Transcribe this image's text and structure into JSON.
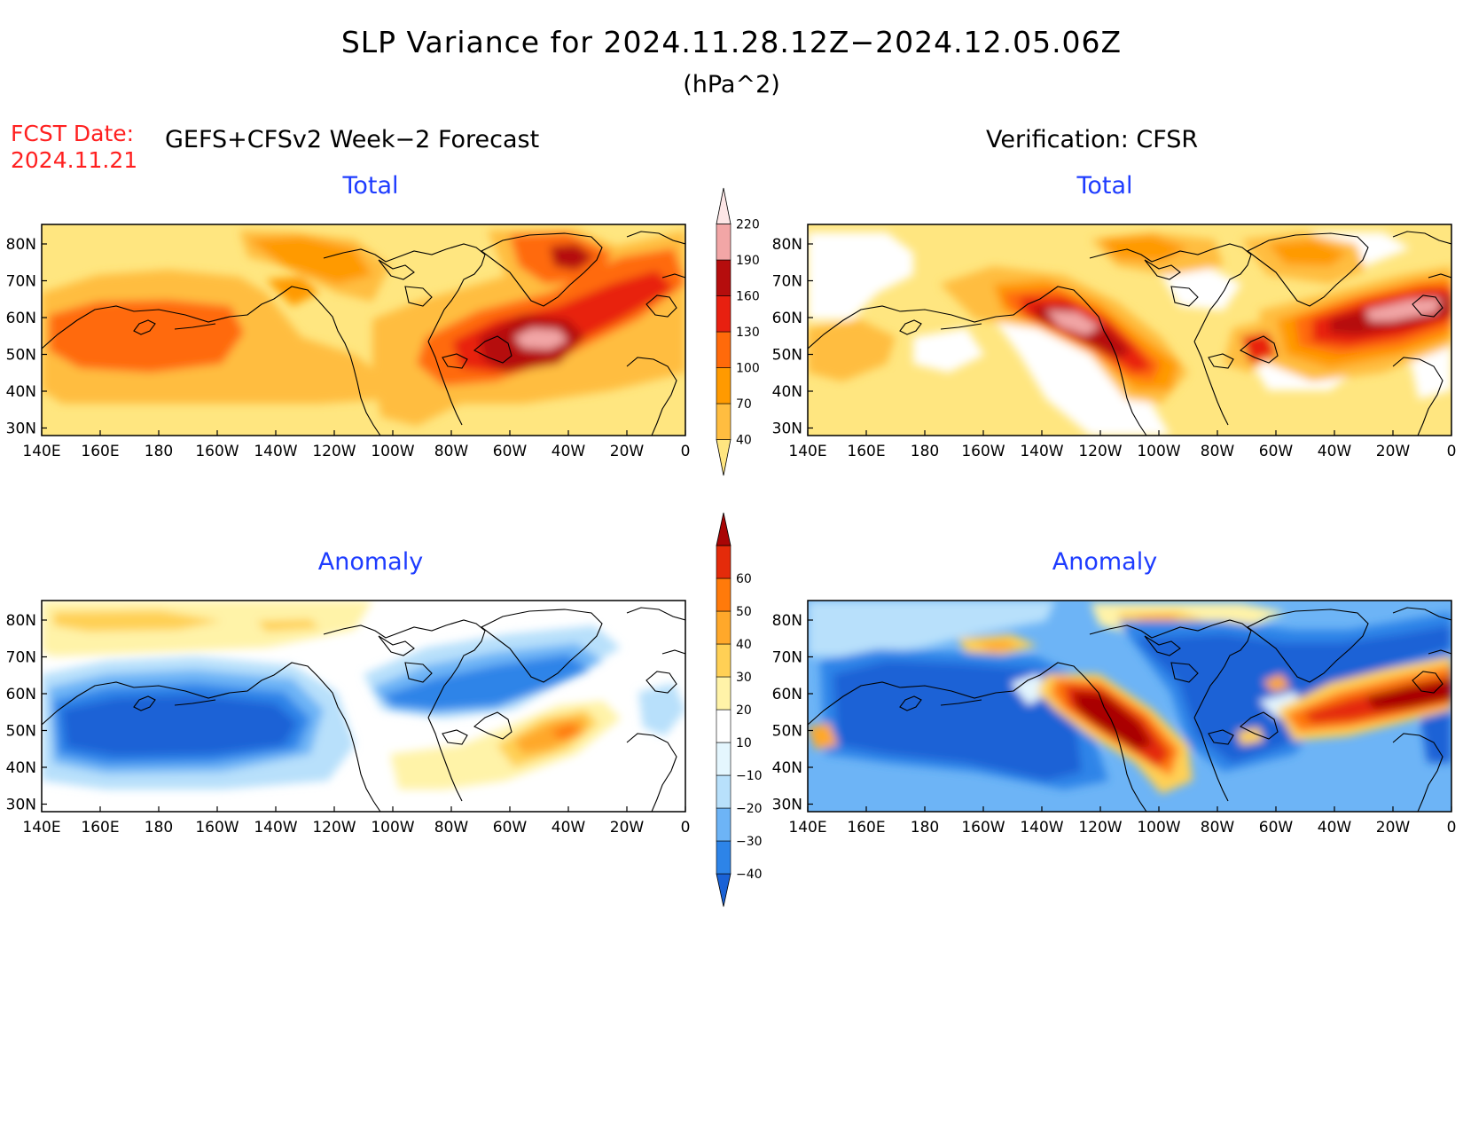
{
  "header": {
    "title": "SLP Variance for 2024.11.28.12Z−2024.12.05.06Z",
    "units": "(hPa^2)",
    "fcst_label": "FCST Date:",
    "fcst_date": "2024.11.21",
    "left_heading": "GEFS+CFSv2 Week−2 Forecast",
    "right_heading": "Verification: CFSR"
  },
  "panels": {
    "top_left_subtitle": "Total",
    "top_right_subtitle": "Total",
    "bottom_left_subtitle": "Anomaly",
    "bottom_right_subtitle": "Anomaly"
  },
  "axes": {
    "lat_labels": [
      "80N",
      "70N",
      "60N",
      "50N",
      "40N",
      "30N"
    ],
    "lon_labels": [
      "140E",
      "160E",
      "180",
      "160W",
      "140W",
      "120W",
      "100W",
      "80W",
      "60W",
      "40W",
      "20W",
      "0"
    ]
  },
  "colorbars": {
    "total": {
      "levels": [
        "40",
        "70",
        "100",
        "130",
        "160",
        "190",
        "220"
      ],
      "colors": [
        "#ffe680",
        "#ffbd40",
        "#ff9a00",
        "#ff6a0a",
        "#e82010",
        "#b50d0d",
        "#f2a6a6",
        "#fde6e6"
      ]
    },
    "anomaly": {
      "levels": [
        "−40",
        "−30",
        "−20",
        "−10",
        "10",
        "20",
        "30",
        "40",
        "50",
        "60"
      ],
      "colors": [
        "#1a62d6",
        "#2d84e8",
        "#6db4f6",
        "#b8e0fb",
        "#e4f6fe",
        "#ffffff",
        "#fff3a8",
        "#ffd055",
        "#ffa82a",
        "#ff7a0a",
        "#e42b0a",
        "#a90505"
      ]
    }
  }
}
